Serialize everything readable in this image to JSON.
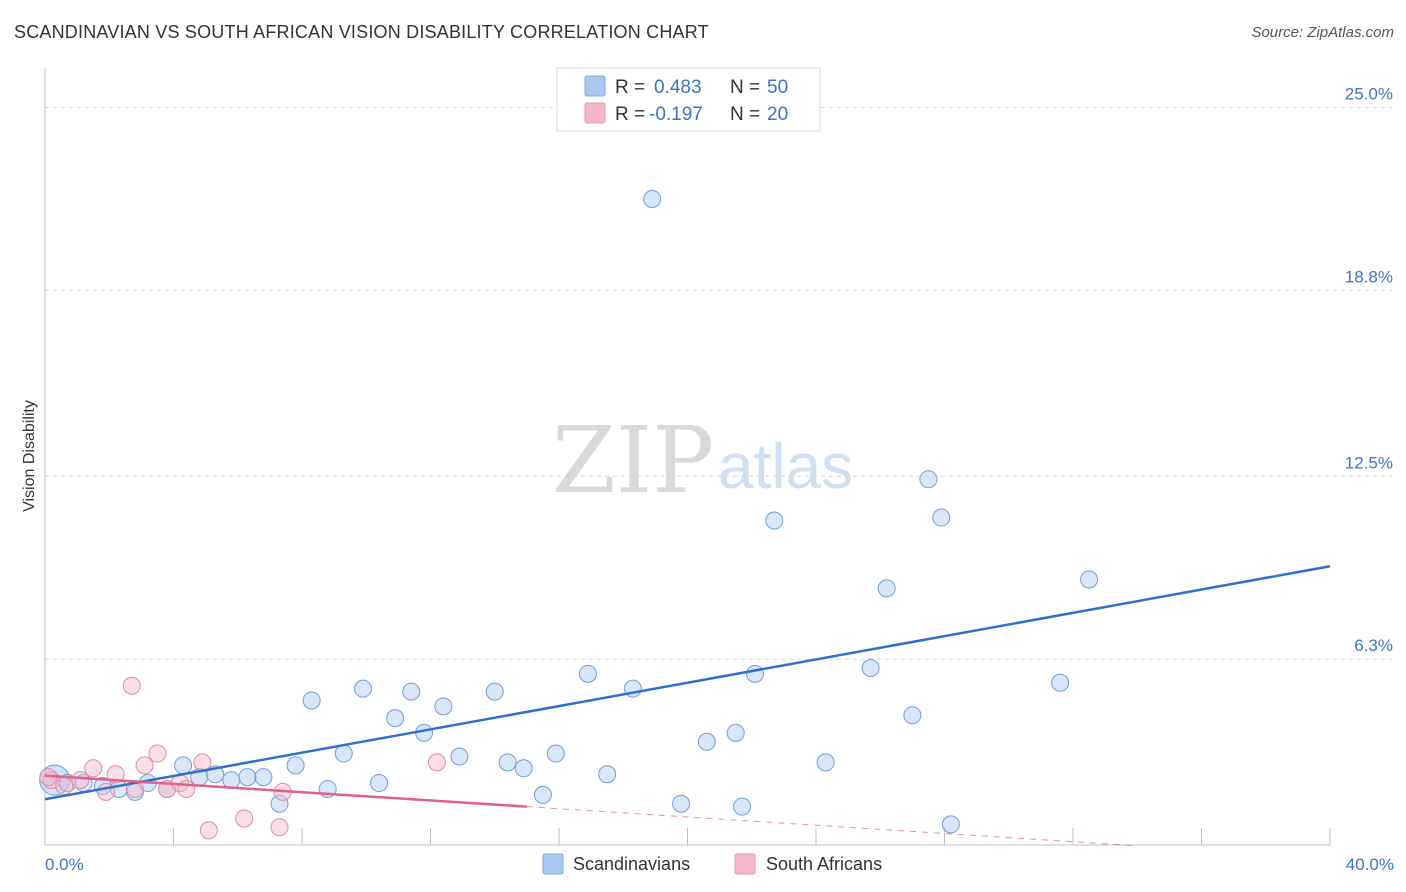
{
  "title": "SCANDINAVIAN VS SOUTH AFRICAN VISION DISABILITY CORRELATION CHART",
  "source": "Source: ZipAtlas.com",
  "watermark": {
    "zip": "ZIP",
    "atlas": "atlas"
  },
  "legend": {
    "r_label": "R =",
    "n_label": "N =",
    "rows": [
      {
        "r": "0.483",
        "n": "50",
        "color": "#a9c8f0"
      },
      {
        "r": "-0.197",
        "n": "20",
        "color": "#f5b8cb"
      }
    ]
  },
  "bottom_legend": [
    {
      "label": "Scandinavians",
      "color": "#a9c8f0"
    },
    {
      "label": "South Africans",
      "color": "#f5b8cb"
    }
  ],
  "chart_data": {
    "type": "scatter",
    "ylabel": "Vision Disability",
    "xlim": [
      0,
      40
    ],
    "ylim": [
      0,
      26.0
    ],
    "y_ticks": [
      {
        "value": 6.3,
        "label": "6.3%"
      },
      {
        "value": 12.5,
        "label": "12.5%"
      },
      {
        "value": 18.8,
        "label": "18.8%"
      },
      {
        "value": 25.0,
        "label": "25.0%"
      }
    ],
    "x_tick_labels": {
      "min": "0.0%",
      "max": "40.0%"
    },
    "series": [
      {
        "name": "Scandinavians",
        "color": "#a9c8f0",
        "stroke": "#6f9fd8",
        "line_color": "#2f6fcf",
        "trend": {
          "x0": 0,
          "y0": 1.55,
          "x1": 40,
          "y1": 9.45,
          "dashed_x1": null
        },
        "points": [
          {
            "x": 0.3,
            "y": 2.2,
            "big": true
          },
          {
            "x": 0.7,
            "y": 2.1
          },
          {
            "x": 1.2,
            "y": 2.1
          },
          {
            "x": 1.8,
            "y": 2.0
          },
          {
            "x": 2.3,
            "y": 1.9
          },
          {
            "x": 2.8,
            "y": 1.8
          },
          {
            "x": 3.2,
            "y": 2.1
          },
          {
            "x": 3.8,
            "y": 1.9
          },
          {
            "x": 4.3,
            "y": 2.7
          },
          {
            "x": 4.8,
            "y": 2.3
          },
          {
            "x": 5.3,
            "y": 2.4
          },
          {
            "x": 5.8,
            "y": 2.2
          },
          {
            "x": 6.3,
            "y": 2.3
          },
          {
            "x": 6.8,
            "y": 2.3
          },
          {
            "x": 7.3,
            "y": 1.4
          },
          {
            "x": 7.8,
            "y": 2.7
          },
          {
            "x": 8.3,
            "y": 4.9
          },
          {
            "x": 8.8,
            "y": 1.9
          },
          {
            "x": 9.3,
            "y": 3.1
          },
          {
            "x": 9.9,
            "y": 5.3
          },
          {
            "x": 10.4,
            "y": 2.1
          },
          {
            "x": 10.9,
            "y": 4.3
          },
          {
            "x": 11.4,
            "y": 5.2
          },
          {
            "x": 11.8,
            "y": 3.8
          },
          {
            "x": 12.4,
            "y": 4.7
          },
          {
            "x": 12.9,
            "y": 3.0
          },
          {
            "x": 14.0,
            "y": 5.2
          },
          {
            "x": 14.4,
            "y": 2.8
          },
          {
            "x": 14.9,
            "y": 2.6
          },
          {
            "x": 15.5,
            "y": 1.7
          },
          {
            "x": 15.9,
            "y": 3.1
          },
          {
            "x": 16.9,
            "y": 5.8
          },
          {
            "x": 17.5,
            "y": 2.4
          },
          {
            "x": 18.3,
            "y": 5.3
          },
          {
            "x": 18.9,
            "y": 21.9
          },
          {
            "x": 19.8,
            "y": 1.4
          },
          {
            "x": 20.6,
            "y": 3.5
          },
          {
            "x": 21.5,
            "y": 3.8
          },
          {
            "x": 21.7,
            "y": 1.3
          },
          {
            "x": 22.1,
            "y": 5.8
          },
          {
            "x": 22.7,
            "y": 11.0
          },
          {
            "x": 24.3,
            "y": 2.8
          },
          {
            "x": 25.7,
            "y": 6.0
          },
          {
            "x": 26.2,
            "y": 8.7
          },
          {
            "x": 27.0,
            "y": 4.4
          },
          {
            "x": 27.5,
            "y": 12.4
          },
          {
            "x": 27.9,
            "y": 11.1
          },
          {
            "x": 28.2,
            "y": 0.7
          },
          {
            "x": 31.6,
            "y": 5.5
          },
          {
            "x": 32.5,
            "y": 9.0
          }
        ]
      },
      {
        "name": "South Africans",
        "color": "#f5b8cb",
        "stroke": "#e48aa6",
        "line_color": "#e0608c",
        "trend": {
          "x0": 0,
          "y0": 2.35,
          "x1": 15.0,
          "y1": 1.3,
          "dashed_x1": 34.0
        },
        "points": [
          {
            "x": 0.2,
            "y": 2.2
          },
          {
            "x": 0.6,
            "y": 2.0
          },
          {
            "x": 1.1,
            "y": 2.2
          },
          {
            "x": 1.5,
            "y": 2.6
          },
          {
            "x": 1.9,
            "y": 1.8
          },
          {
            "x": 2.2,
            "y": 2.4
          },
          {
            "x": 2.7,
            "y": 5.4
          },
          {
            "x": 2.8,
            "y": 1.9
          },
          {
            "x": 3.1,
            "y": 2.7
          },
          {
            "x": 3.5,
            "y": 3.1
          },
          {
            "x": 3.8,
            "y": 1.9
          },
          {
            "x": 4.2,
            "y": 2.1
          },
          {
            "x": 4.4,
            "y": 1.9
          },
          {
            "x": 4.9,
            "y": 2.8
          },
          {
            "x": 5.1,
            "y": 0.5
          },
          {
            "x": 6.2,
            "y": 0.9
          },
          {
            "x": 7.3,
            "y": 0.6
          },
          {
            "x": 7.4,
            "y": 1.8
          },
          {
            "x": 12.2,
            "y": 2.8
          },
          {
            "x": 0.1,
            "y": 2.3
          }
        ]
      }
    ]
  }
}
